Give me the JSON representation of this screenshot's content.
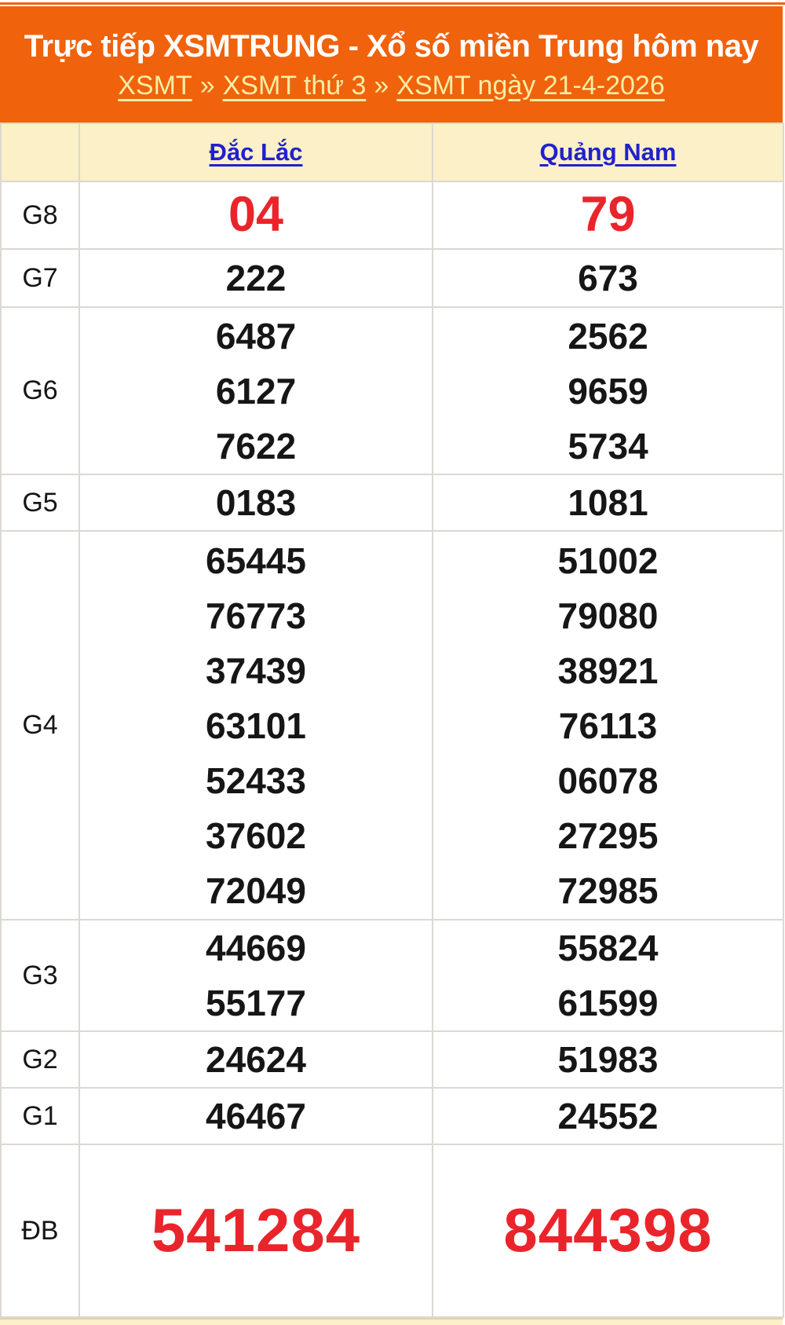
{
  "header": {
    "title": "Trực tiếp XSMTRUNG - Xổ số miền Trung hôm nay",
    "separator": "»",
    "breadcrumb": [
      {
        "label": "XSMT"
      },
      {
        "label": "XSMT thứ 3"
      },
      {
        "label": "XSMT ngày 21-4-2026"
      }
    ]
  },
  "table": {
    "columns": [
      "Đắc Lắc",
      "Quảng Nam"
    ],
    "rows": [
      {
        "prize": "G8",
        "highlight": true,
        "values": [
          [
            "04"
          ],
          [
            "79"
          ]
        ]
      },
      {
        "prize": "G7",
        "highlight": false,
        "values": [
          [
            "222"
          ],
          [
            "673"
          ]
        ]
      },
      {
        "prize": "G6",
        "highlight": false,
        "values": [
          [
            "6487",
            "6127",
            "7622"
          ],
          [
            "2562",
            "9659",
            "5734"
          ]
        ]
      },
      {
        "prize": "G5",
        "highlight": false,
        "values": [
          [
            "0183"
          ],
          [
            "1081"
          ]
        ]
      },
      {
        "prize": "G4",
        "highlight": false,
        "values": [
          [
            "65445",
            "76773",
            "37439",
            "63101",
            "52433",
            "37602",
            "72049"
          ],
          [
            "51002",
            "79080",
            "38921",
            "76113",
            "06078",
            "27295",
            "72985"
          ]
        ]
      },
      {
        "prize": "G3",
        "highlight": false,
        "values": [
          [
            "44669",
            "55177"
          ],
          [
            "55824",
            "61599"
          ]
        ]
      },
      {
        "prize": "G2",
        "highlight": false,
        "values": [
          [
            "24624"
          ],
          [
            "51983"
          ]
        ]
      },
      {
        "prize": "G1",
        "highlight": false,
        "values": [
          [
            "46467"
          ],
          [
            "24552"
          ]
        ]
      },
      {
        "prize": "ĐB",
        "highlight": true,
        "values": [
          [
            "541284"
          ],
          [
            "844398"
          ]
        ]
      }
    ]
  },
  "colors": {
    "accent_orange": "#F0620C",
    "breadcrumb_pale_yellow": "#F6EEA4",
    "table_header_cream": "#FBF0C8",
    "link_blue": "#2121CE",
    "highlight_red": "#E9252B",
    "number_black": "#161616",
    "border_gray": "#DCD8D2"
  }
}
